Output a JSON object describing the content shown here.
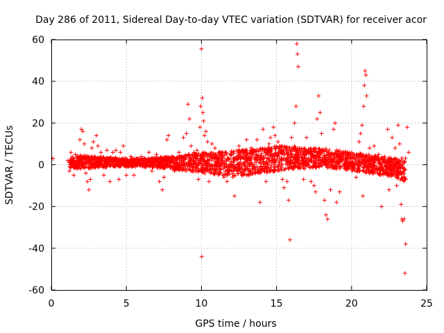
{
  "chart_data": {
    "type": "scatter",
    "title": "Day 286 of 2011, Sidereal Day-to-day VTEC variation (SDTVAR) for receiver acor",
    "xlabel": "GPS time / hours",
    "ylabel": "SDTVAR / TECUs",
    "xlim": [
      0,
      25
    ],
    "ylim": [
      -60,
      60
    ],
    "xticks": [
      "0",
      "5",
      "10",
      "15",
      "20",
      "25"
    ],
    "yticks": [
      "-60",
      "-40",
      "-20",
      "0",
      "20",
      "40",
      "60"
    ],
    "grid": true,
    "marker": "+",
    "color": "#ff0000",
    "band": [
      [
        1.2,
        -1.5,
        4.0
      ],
      [
        2.0,
        -2.0,
        4.5
      ],
      [
        3.0,
        -1.5,
        4.0
      ],
      [
        4.0,
        -1.0,
        3.5
      ],
      [
        5.0,
        -1.0,
        3.0
      ],
      [
        6.0,
        -1.0,
        3.0
      ],
      [
        7.0,
        -1.5,
        3.5
      ],
      [
        8.0,
        -2.0,
        4.0
      ],
      [
        9.0,
        -3.0,
        5.0
      ],
      [
        10.0,
        -4.0,
        6.0
      ],
      [
        11.0,
        -5.0,
        6.0
      ],
      [
        12.0,
        -6.0,
        7.0
      ],
      [
        13.0,
        -5.0,
        7.0
      ],
      [
        14.0,
        -4.0,
        8.0
      ],
      [
        15.0,
        -3.0,
        9.0
      ],
      [
        16.0,
        -2.0,
        9.0
      ],
      [
        17.0,
        -2.0,
        8.0
      ],
      [
        18.0,
        -1.0,
        8.0
      ],
      [
        19.0,
        -2.0,
        7.0
      ],
      [
        20.0,
        -3.0,
        6.0
      ],
      [
        21.0,
        -4.0,
        5.0
      ],
      [
        22.0,
        -5.0,
        4.0
      ],
      [
        23.0,
        -6.0,
        3.0
      ],
      [
        23.6,
        -9.0,
        4.0
      ]
    ],
    "points": [
      [
        0.1,
        3
      ],
      [
        1.1,
        2
      ],
      [
        1.2,
        -3
      ],
      [
        1.3,
        6
      ],
      [
        1.5,
        -5
      ],
      [
        1.6,
        5
      ],
      [
        1.9,
        12
      ],
      [
        2.0,
        17
      ],
      [
        2.1,
        16
      ],
      [
        2.2,
        10
      ],
      [
        2.3,
        -4
      ],
      [
        2.4,
        -8
      ],
      [
        2.5,
        -12
      ],
      [
        2.6,
        -7
      ],
      [
        2.7,
        8
      ],
      [
        2.8,
        11
      ],
      [
        3.0,
        14
      ],
      [
        3.1,
        9
      ],
      [
        3.3,
        6
      ],
      [
        3.5,
        -5
      ],
      [
        3.7,
        7
      ],
      [
        3.9,
        -8
      ],
      [
        4.1,
        6
      ],
      [
        4.3,
        7
      ],
      [
        4.5,
        -7
      ],
      [
        4.6,
        6
      ],
      [
        4.8,
        9
      ],
      [
        5.0,
        -5
      ],
      [
        5.3,
        4
      ],
      [
        5.5,
        -5
      ],
      [
        6.0,
        4
      ],
      [
        6.5,
        6
      ],
      [
        6.7,
        -3
      ],
      [
        7.0,
        5
      ],
      [
        7.2,
        -8
      ],
      [
        7.4,
        -12
      ],
      [
        7.5,
        -6
      ],
      [
        7.7,
        12
      ],
      [
        7.8,
        14
      ],
      [
        8.0,
        4
      ],
      [
        8.2,
        -3
      ],
      [
        8.5,
        6
      ],
      [
        8.7,
        4
      ],
      [
        8.8,
        13
      ],
      [
        9.0,
        15
      ],
      [
        9.1,
        29
      ],
      [
        9.2,
        22
      ],
      [
        9.3,
        9
      ],
      [
        9.5,
        6
      ],
      [
        9.6,
        4
      ],
      [
        9.7,
        7
      ],
      [
        9.8,
        -7
      ],
      [
        9.9,
        18
      ],
      [
        9.95,
        28
      ],
      [
        10.0,
        55.5
      ],
      [
        10.02,
        -44
      ],
      [
        10.05,
        32
      ],
      [
        10.1,
        25
      ],
      [
        10.15,
        21
      ],
      [
        10.2,
        14
      ],
      [
        10.3,
        16
      ],
      [
        10.4,
        11
      ],
      [
        10.5,
        -8
      ],
      [
        10.7,
        10
      ],
      [
        10.9,
        8
      ],
      [
        11.2,
        6
      ],
      [
        11.5,
        -6
      ],
      [
        11.7,
        -8
      ],
      [
        12.0,
        5
      ],
      [
        12.2,
        -15
      ],
      [
        12.5,
        9
      ],
      [
        12.6,
        6
      ],
      [
        12.9,
        7
      ],
      [
        13.0,
        12
      ],
      [
        13.2,
        -5
      ],
      [
        13.3,
        8
      ],
      [
        13.5,
        6
      ],
      [
        13.7,
        12
      ],
      [
        13.9,
        -18
      ],
      [
        14.1,
        17
      ],
      [
        14.3,
        -8
      ],
      [
        14.5,
        10
      ],
      [
        14.6,
        13
      ],
      [
        14.8,
        18
      ],
      [
        14.9,
        14
      ],
      [
        15.1,
        11
      ],
      [
        15.2,
        9
      ],
      [
        15.4,
        -7
      ],
      [
        15.5,
        -11
      ],
      [
        15.7,
        -8
      ],
      [
        15.8,
        -17
      ],
      [
        15.9,
        -36
      ],
      [
        16.0,
        13
      ],
      [
        16.2,
        20
      ],
      [
        16.3,
        28
      ],
      [
        16.35,
        58
      ],
      [
        16.4,
        53
      ],
      [
        16.45,
        47
      ],
      [
        16.6,
        6
      ],
      [
        16.8,
        -7
      ],
      [
        17.0,
        13
      ],
      [
        17.3,
        -8
      ],
      [
        17.5,
        -10
      ],
      [
        17.6,
        -13
      ],
      [
        17.7,
        22
      ],
      [
        17.8,
        33
      ],
      [
        17.9,
        25
      ],
      [
        18.0,
        15
      ],
      [
        18.2,
        -17
      ],
      [
        18.3,
        -24
      ],
      [
        18.4,
        -26
      ],
      [
        18.6,
        -12
      ],
      [
        18.8,
        17
      ],
      [
        18.9,
        20
      ],
      [
        19.0,
        -18
      ],
      [
        19.2,
        -13
      ],
      [
        19.4,
        5
      ],
      [
        20.0,
        5
      ],
      [
        20.3,
        -6
      ],
      [
        20.5,
        11
      ],
      [
        20.6,
        15
      ],
      [
        20.7,
        19
      ],
      [
        20.75,
        -15
      ],
      [
        20.8,
        28
      ],
      [
        20.85,
        38
      ],
      [
        20.9,
        45
      ],
      [
        20.95,
        43
      ],
      [
        21.0,
        33
      ],
      [
        21.2,
        8
      ],
      [
        21.5,
        9
      ],
      [
        21.8,
        5
      ],
      [
        22.0,
        -20
      ],
      [
        22.2,
        4
      ],
      [
        22.4,
        17
      ],
      [
        22.5,
        -12
      ],
      [
        22.7,
        13
      ],
      [
        22.9,
        8
      ],
      [
        23.0,
        -10
      ],
      [
        23.1,
        19
      ],
      [
        23.2,
        10
      ],
      [
        23.3,
        -19
      ],
      [
        23.35,
        -26
      ],
      [
        23.4,
        -27
      ],
      [
        23.5,
        -26
      ],
      [
        23.55,
        -52
      ],
      [
        23.6,
        -38
      ],
      [
        23.7,
        18
      ],
      [
        23.8,
        6
      ]
    ]
  }
}
